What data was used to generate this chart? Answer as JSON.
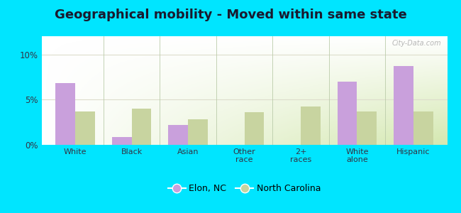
{
  "title": "Geographical mobility - Moved within same state",
  "categories": [
    "White",
    "Black",
    "Asian",
    "Other\nrace",
    "2+\nraces",
    "White\nalone",
    "Hispanic"
  ],
  "elon_values": [
    6.8,
    0.9,
    2.2,
    0.0,
    0.0,
    7.0,
    8.7
  ],
  "nc_values": [
    3.7,
    4.0,
    2.8,
    3.6,
    4.2,
    3.7,
    3.7
  ],
  "elon_color": "#c9a0dc",
  "nc_color": "#c8d4a0",
  "background_color": "#00e5ff",
  "ylim_max": 12,
  "bar_width": 0.35,
  "title_fontsize": 13,
  "title_color": "#1a1a2e",
  "legend_labels": [
    "Elon, NC",
    "North Carolina"
  ],
  "watermark": "City-Data.com",
  "ytick_labels": [
    "0%",
    "5%",
    "10%"
  ],
  "ytick_vals": [
    0,
    5,
    10
  ],
  "hline5_color": "#ddddcc",
  "hline10_color": "#ddddcc",
  "sep_line_color": "#bbccaa"
}
